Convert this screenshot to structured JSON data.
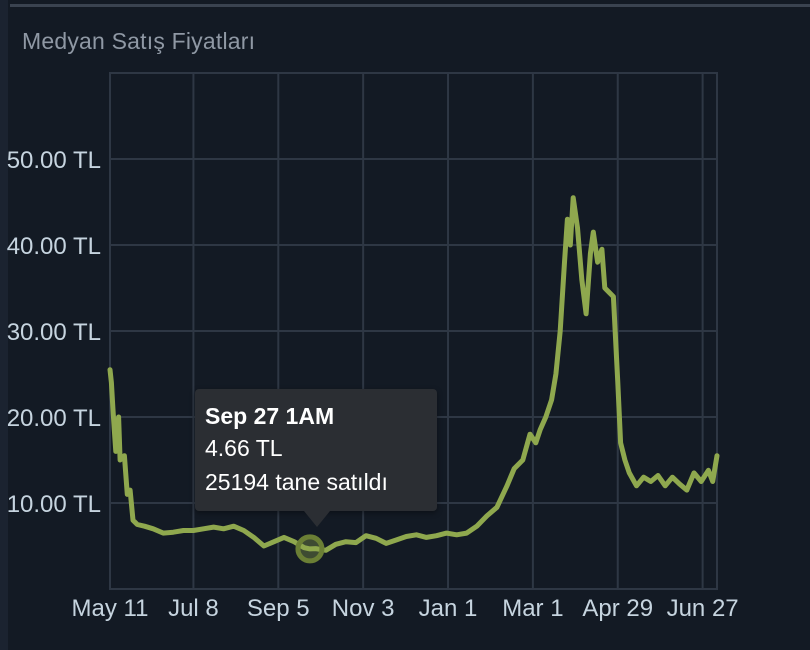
{
  "chart_data": {
    "type": "line",
    "title": "Medyan Satış Fiyatları",
    "xlabel": "",
    "ylabel": "",
    "x_ticks": [
      "May 11",
      "Jul 8",
      "Sep 5",
      "Nov 3",
      "Jan 1",
      "Mar 1",
      "Apr 29",
      "Jun 27"
    ],
    "y_ticks": [
      "10.00 TL",
      "20.00 TL",
      "30.00 TL",
      "40.00 TL",
      "50.00 TL"
    ],
    "y_tick_values": [
      10,
      20,
      30,
      40,
      50
    ],
    "ylim": [
      0,
      60
    ],
    "xlim": [
      "May 11",
      "Jul 7"
    ],
    "grid": true,
    "line_color": "#8fa84e",
    "series": [
      {
        "points": [
          [
            "May 11",
            25.5
          ],
          [
            "May 12",
            24
          ],
          [
            "May 13",
            21
          ],
          [
            "May 14",
            18.5
          ],
          [
            "May 15",
            16
          ],
          [
            "May 17",
            20
          ],
          [
            "May 18",
            15
          ],
          [
            "May 21",
            15.5
          ],
          [
            "May 23",
            11
          ],
          [
            "May 25",
            11.5
          ],
          [
            "May 27",
            8
          ],
          [
            "May 30",
            7.5
          ],
          [
            "Jun 4",
            7.3
          ],
          [
            "Jun 10",
            7
          ],
          [
            "Jun 17",
            6.5
          ],
          [
            "Jun 24",
            6.6
          ],
          [
            "Jul 1",
            6.8
          ],
          [
            "Jul 8",
            6.8
          ],
          [
            "Jul 15",
            7
          ],
          [
            "Jul 22",
            7.2
          ],
          [
            "Jul 29",
            7
          ],
          [
            "Aug 5",
            7.3
          ],
          [
            "Aug 12",
            6.8
          ],
          [
            "Aug 19",
            6
          ],
          [
            "Aug 26",
            5
          ],
          [
            "Sep 2",
            5.5
          ],
          [
            "Sep 9",
            6
          ],
          [
            "Sep 16",
            5.5
          ],
          [
            "Sep 23",
            4.8
          ],
          [
            "Sep 27",
            4.66
          ],
          [
            "Oct 1",
            4.7
          ],
          [
            "Oct 8",
            4.5
          ],
          [
            "Oct 15",
            5.2
          ],
          [
            "Oct 22",
            5.5
          ],
          [
            "Oct 29",
            5.4
          ],
          [
            "Nov 5",
            6.2
          ],
          [
            "Nov 12",
            5.9
          ],
          [
            "Nov 19",
            5.3
          ],
          [
            "Nov 26",
            5.7
          ],
          [
            "Dec 3",
            6.1
          ],
          [
            "Dec 10",
            6.3
          ],
          [
            "Dec 17",
            6
          ],
          [
            "Dec 24",
            6.2
          ],
          [
            "Dec 31",
            6.5
          ],
          [
            "Jan 7",
            6.3
          ],
          [
            "Jan 14",
            6.5
          ],
          [
            "Jan 21",
            7.3
          ],
          [
            "Jan 28",
            8.5
          ],
          [
            "Feb 4",
            9.5
          ],
          [
            "Feb 11",
            12
          ],
          [
            "Feb 16",
            14
          ],
          [
            "Feb 22",
            15
          ],
          [
            "Feb 27",
            18
          ],
          [
            "Mar 3",
            17
          ],
          [
            "Mar 6",
            18.5
          ],
          [
            "Mar 10",
            20
          ],
          [
            "Mar 14",
            22
          ],
          [
            "Mar 17",
            25
          ],
          [
            "Mar 20",
            30
          ],
          [
            "Mar 23",
            38
          ],
          [
            "Mar 25",
            43
          ],
          [
            "Mar 27",
            40
          ],
          [
            "Mar 29",
            45.5
          ],
          [
            "Apr 1",
            42
          ],
          [
            "Apr 4",
            36
          ],
          [
            "Apr 7",
            32
          ],
          [
            "Apr 10",
            39
          ],
          [
            "Apr 12",
            41.5
          ],
          [
            "Apr 15",
            38
          ],
          [
            "Apr 18",
            39.5
          ],
          [
            "Apr 20",
            35
          ],
          [
            "Apr 23",
            34.5
          ],
          [
            "Apr 26",
            34
          ],
          [
            "Apr 29",
            24
          ],
          [
            "May 1",
            17
          ],
          [
            "May 4",
            15
          ],
          [
            "May 7",
            13.5
          ],
          [
            "May 12",
            12
          ],
          [
            "May 17",
            13
          ],
          [
            "May 22",
            12.5
          ],
          [
            "May 27",
            13.2
          ],
          [
            "Jun 1",
            12
          ],
          [
            "Jun 6",
            13
          ],
          [
            "Jun 11",
            12.2
          ],
          [
            "Jun 16",
            11.5
          ],
          [
            "Jun 21",
            13.5
          ],
          [
            "Jun 26",
            12.5
          ],
          [
            "Jul 1",
            13.8
          ],
          [
            "Jul 4",
            12.5
          ],
          [
            "Jul 7",
            15.5
          ]
        ]
      }
    ],
    "highlight_point": {
      "x": "Sep 27",
      "y": 4.66
    }
  },
  "tooltip": {
    "title": "Sep 27 1AM",
    "price": "4.66 TL",
    "sold": "25194 tane satıldı"
  }
}
